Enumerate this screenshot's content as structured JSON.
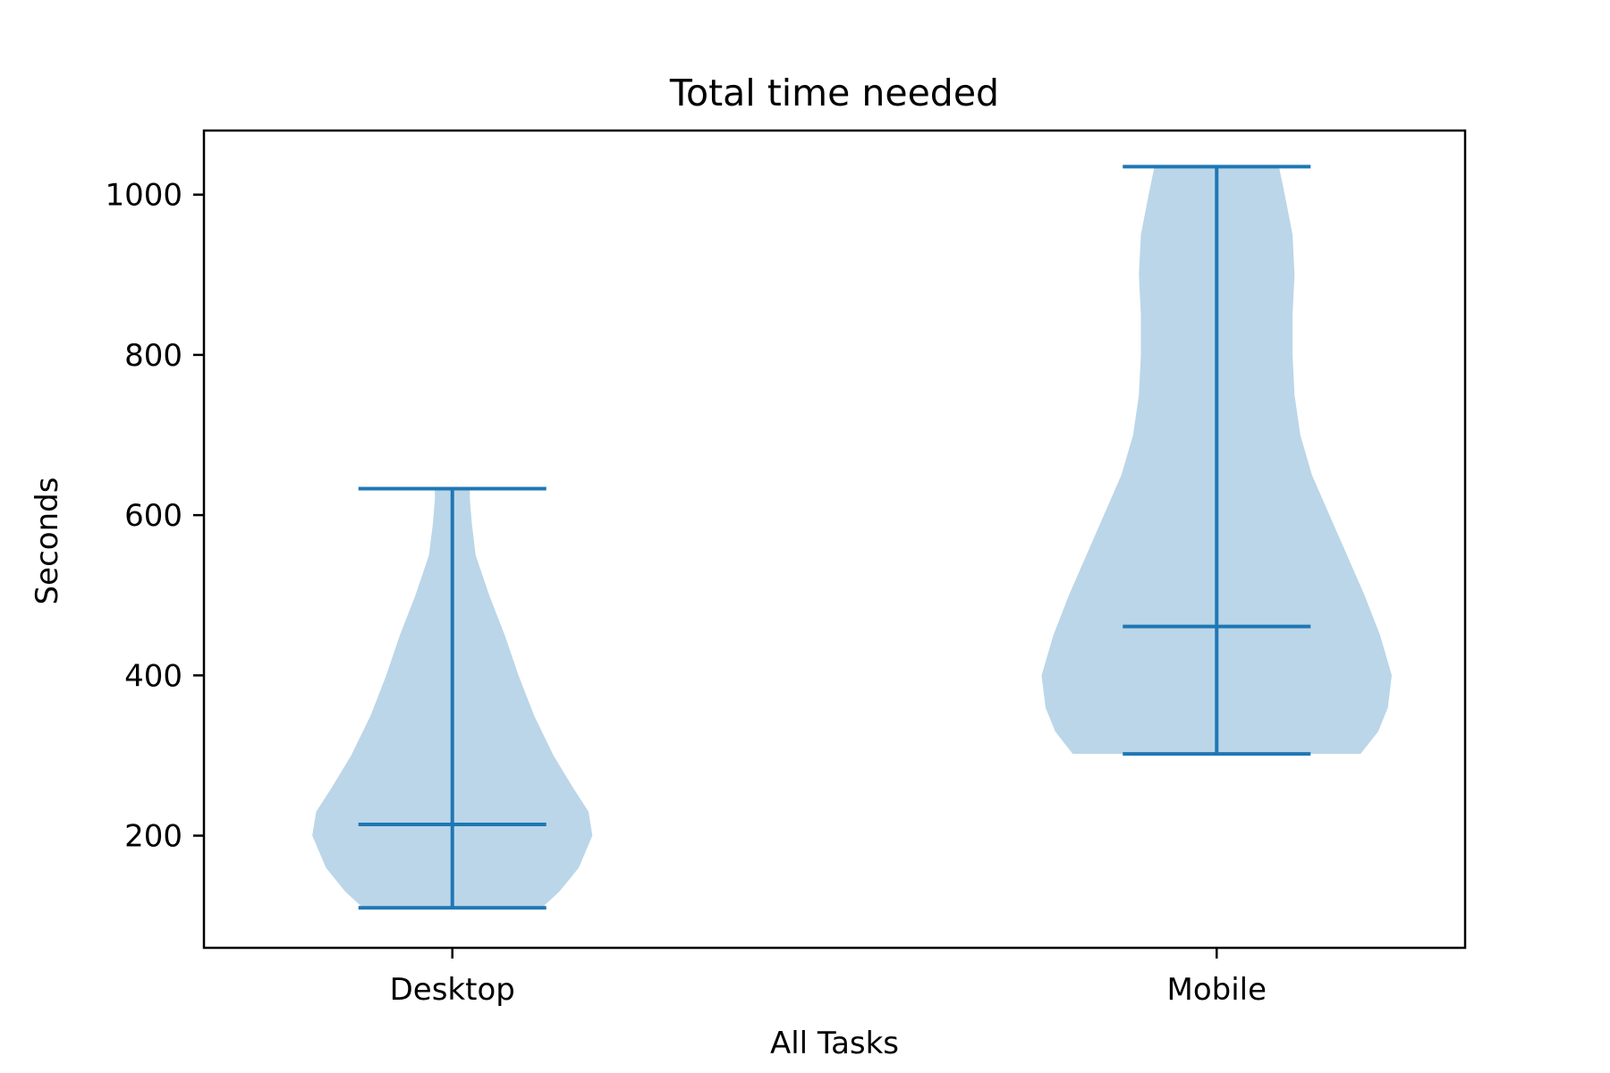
{
  "chart_data": {
    "type": "violin",
    "title": "Total time needed",
    "xlabel": "All Tasks",
    "ylabel": "Seconds",
    "categories": [
      "Desktop",
      "Mobile"
    ],
    "ylim": [
      60,
      1080
    ],
    "yticks": [
      200,
      400,
      600,
      800,
      1000
    ],
    "ytick_labels": [
      "200",
      "400",
      "600",
      "800",
      "1000"
    ],
    "grid": false,
    "legend": "none",
    "colors": {
      "body": "#bbd6e8",
      "lines": "#1f77b4",
      "axes": "#000000"
    },
    "series": [
      {
        "category": "Desktop",
        "min": 110,
        "median": 214,
        "max": 633,
        "density_profile": [
          [
            110,
            0.46
          ],
          [
            130,
            0.55
          ],
          [
            160,
            0.65
          ],
          [
            200,
            0.72
          ],
          [
            230,
            0.7
          ],
          [
            260,
            0.62
          ],
          [
            300,
            0.52
          ],
          [
            350,
            0.42
          ],
          [
            400,
            0.34
          ],
          [
            450,
            0.27
          ],
          [
            500,
            0.19
          ],
          [
            550,
            0.12
          ],
          [
            590,
            0.1
          ],
          [
            620,
            0.09
          ],
          [
            633,
            0.09
          ]
        ]
      },
      {
        "category": "Mobile",
        "min": 302,
        "median": 461,
        "max": 1035,
        "density_profile": [
          [
            302,
            0.74
          ],
          [
            330,
            0.83
          ],
          [
            360,
            0.88
          ],
          [
            400,
            0.9
          ],
          [
            450,
            0.84
          ],
          [
            500,
            0.76
          ],
          [
            550,
            0.67
          ],
          [
            600,
            0.58
          ],
          [
            650,
            0.49
          ],
          [
            700,
            0.43
          ],
          [
            750,
            0.4
          ],
          [
            800,
            0.39
          ],
          [
            850,
            0.39
          ],
          [
            900,
            0.4
          ],
          [
            950,
            0.39
          ],
          [
            1000,
            0.35
          ],
          [
            1035,
            0.32
          ]
        ]
      }
    ]
  }
}
